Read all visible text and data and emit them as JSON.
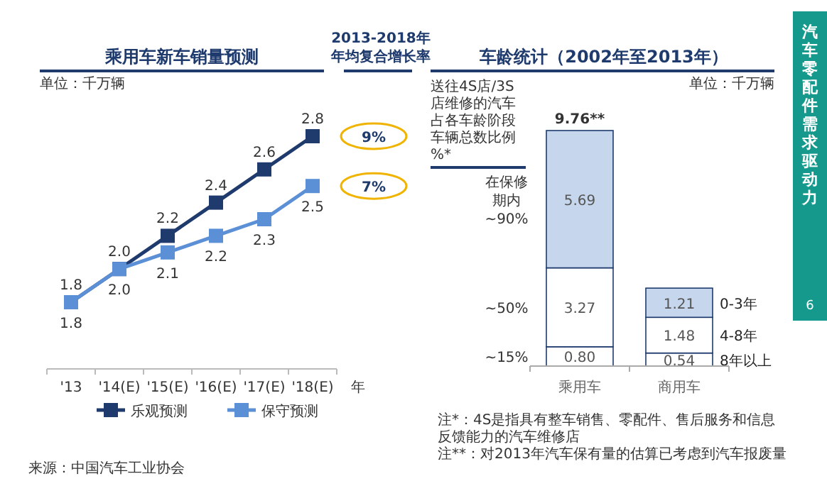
{
  "chart_data": [
    {
      "type": "line",
      "title": "乘用车新车销量预测",
      "xlabel": "年",
      "categories": [
        "'13",
        "'14(E)",
        "'15(E)",
        "'16(E)",
        "'17(E)",
        "'18(E)"
      ],
      "series": [
        {
          "name": "乐观预测",
          "color": "#1f3b6e",
          "values": [
            1.8,
            2.0,
            2.2,
            2.4,
            2.6,
            2.8
          ],
          "value_labels": [
            "1.8",
            "2.0",
            "2.2",
            "2.4",
            "2.6",
            "2.8"
          ]
        },
        {
          "name": "保守预测",
          "color": "#5b8fd6",
          "values": [
            1.8,
            2.0,
            2.1,
            2.2,
            2.3,
            2.5
          ],
          "value_labels": [
            "1.8",
            "2.0",
            "2.1",
            "2.2",
            "2.3",
            "2.5"
          ]
        }
      ],
      "marker": "square",
      "legend": "bottom",
      "tick_labels": "x",
      "annotations": [
        "2013-2018年年均复合增长率",
        "单位：千万辆",
        "来源：中国汽车工业协会",
        "9%",
        "7%"
      ]
    },
    {
      "type": "bar",
      "title": "车龄统计（2002年至2013年）",
      "stacked": true,
      "categories": [
        "乘用车",
        "商用车"
      ],
      "series": [
        {
          "name": "8年以上",
          "color": "#ffffff",
          "values": [
            0.8,
            0.54
          ],
          "value_labels": [
            "0.80",
            "0.54"
          ]
        },
        {
          "name": "4-8年",
          "color": "#ffffff",
          "values": [
            3.27,
            1.48
          ],
          "value_labels": [
            "3.27",
            "1.48"
          ]
        },
        {
          "name": "0-3年",
          "color": "#c6d6ec",
          "values": [
            5.69,
            1.21
          ],
          "value_labels": [
            "5.69",
            "1.21"
          ]
        }
      ],
      "totals": [
        "9.76**",
        null
      ],
      "tick_labels": "x",
      "annotations": [
        "单位：千万辆",
        "送往4S店/3S店维修的汽车占各车龄阶段车辆总数比例%*",
        "注*：4S是指具有整车销售、零配件、售后服务和信息反馈能力的汽车维修店",
        "注**：对2013年汽车保有量的估算已考虑到汽车报废量",
        "汽车零配件需求驱动力",
        "6",
        "~15%",
        "~50%",
        "在保修期内~90%"
      ]
    }
  ]
}
